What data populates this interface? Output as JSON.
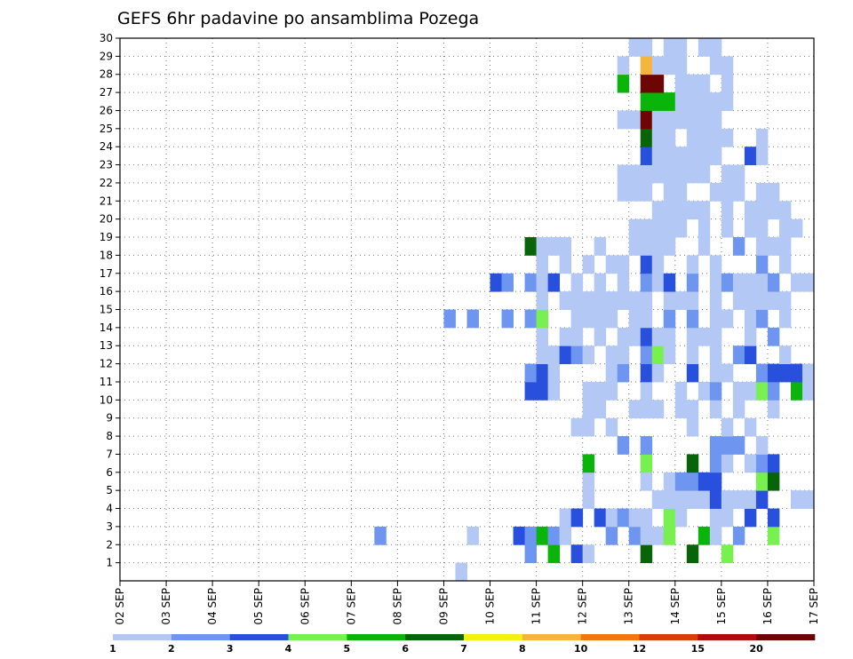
{
  "chart_data": {
    "type": "heatmap",
    "title": "GEFS 6hr padavine po ansamblima Pozega",
    "xlabel": "",
    "ylabel": "",
    "x_tick_labels": [
      "02 SEP",
      "03 SEP",
      "04 SEP",
      "05 SEP",
      "06 SEP",
      "07 SEP",
      "08 SEP",
      "09 SEP",
      "10 SEP",
      "11 SEP",
      "12 SEP",
      "13 SEP",
      "14 SEP",
      "15 SEP",
      "16 SEP",
      "17 SEP"
    ],
    "y_tick_labels": [
      "1",
      "2",
      "3",
      "4",
      "5",
      "6",
      "7",
      "8",
      "9",
      "10",
      "11",
      "12",
      "13",
      "14",
      "15",
      "16",
      "17",
      "18",
      "19",
      "20",
      "21",
      "22",
      "23",
      "24",
      "25",
      "26",
      "27",
      "28",
      "29",
      "30"
    ],
    "x_range_steps": [
      0,
      60
    ],
    "steps_per_day": 4,
    "y_range": [
      0,
      30
    ],
    "grid": true,
    "legend_position": "bottom",
    "legend": {
      "colors": [
        "#b4c8f5",
        "#6e96f0",
        "#2850dc",
        "#78f050",
        "#0ab40a",
        "#086408",
        "#f5f014",
        "#f5b43c",
        "#f0780a",
        "#dc3c0a",
        "#b40a0a",
        "#6e0505"
      ],
      "labels": [
        "1",
        "2",
        "3",
        "4",
        "5",
        "6",
        "7",
        "8",
        "10",
        "12",
        "15",
        "20"
      ]
    },
    "cells": [
      [
        1,
        30,
        1
      ],
      [
        2,
        36,
        2
      ],
      [
        2,
        38,
        5
      ],
      [
        2,
        40,
        3
      ],
      [
        2,
        41,
        1
      ],
      [
        2,
        46,
        6
      ],
      [
        2,
        50,
        6
      ],
      [
        2,
        53,
        4
      ],
      [
        3,
        23,
        2
      ],
      [
        3,
        31,
        1
      ],
      [
        3,
        35,
        3
      ],
      [
        3,
        36,
        2
      ],
      [
        3,
        37,
        5
      ],
      [
        3,
        38,
        2
      ],
      [
        3,
        39,
        1
      ],
      [
        3,
        43,
        2
      ],
      [
        3,
        45,
        2
      ],
      [
        3,
        46,
        1
      ],
      [
        3,
        47,
        1
      ],
      [
        3,
        48,
        4
      ],
      [
        3,
        51,
        5
      ],
      [
        3,
        52,
        1
      ],
      [
        3,
        54,
        2
      ],
      [
        3,
        57,
        4
      ],
      [
        4,
        39,
        1
      ],
      [
        4,
        40,
        3
      ],
      [
        4,
        42,
        3
      ],
      [
        4,
        43,
        1
      ],
      [
        4,
        44,
        2
      ],
      [
        4,
        45,
        1
      ],
      [
        4,
        46,
        1
      ],
      [
        4,
        48,
        4
      ],
      [
        4,
        49,
        1
      ],
      [
        4,
        52,
        1
      ],
      [
        4,
        53,
        1
      ],
      [
        4,
        55,
        3
      ],
      [
        4,
        57,
        3
      ],
      [
        5,
        41,
        1
      ],
      [
        5,
        47,
        1
      ],
      [
        5,
        48,
        1
      ],
      [
        5,
        49,
        1
      ],
      [
        5,
        50,
        1
      ],
      [
        5,
        51,
        1
      ],
      [
        5,
        52,
        3
      ],
      [
        5,
        53,
        1
      ],
      [
        5,
        54,
        1
      ],
      [
        5,
        55,
        1
      ],
      [
        5,
        56,
        3
      ],
      [
        5,
        59,
        1
      ],
      [
        5,
        60,
        1
      ],
      [
        6,
        41,
        1
      ],
      [
        6,
        46,
        1
      ],
      [
        6,
        48,
        1
      ],
      [
        6,
        49,
        2
      ],
      [
        6,
        50,
        2
      ],
      [
        6,
        51,
        3
      ],
      [
        6,
        52,
        3
      ],
      [
        6,
        56,
        4
      ],
      [
        6,
        57,
        6
      ],
      [
        7,
        41,
        5
      ],
      [
        7,
        46,
        4
      ],
      [
        7,
        50,
        6
      ],
      [
        7,
        52,
        2
      ],
      [
        7,
        53,
        1
      ],
      [
        7,
        55,
        1
      ],
      [
        7,
        56,
        2
      ],
      [
        7,
        57,
        3
      ],
      [
        8,
        44,
        2
      ],
      [
        8,
        46,
        2
      ],
      [
        8,
        52,
        2
      ],
      [
        8,
        53,
        2
      ],
      [
        8,
        54,
        2
      ],
      [
        8,
        56,
        1
      ],
      [
        9,
        40,
        1
      ],
      [
        9,
        41,
        1
      ],
      [
        9,
        43,
        1
      ],
      [
        9,
        50,
        1
      ],
      [
        9,
        53,
        1
      ],
      [
        9,
        55,
        1
      ],
      [
        10,
        41,
        1
      ],
      [
        10,
        42,
        1
      ],
      [
        10,
        45,
        1
      ],
      [
        10,
        46,
        1
      ],
      [
        10,
        47,
        1
      ],
      [
        10,
        49,
        1
      ],
      [
        10,
        50,
        1
      ],
      [
        10,
        52,
        1
      ],
      [
        10,
        54,
        1
      ],
      [
        10,
        57,
        1
      ],
      [
        11,
        36,
        3
      ],
      [
        11,
        37,
        3
      ],
      [
        11,
        38,
        1
      ],
      [
        11,
        41,
        1
      ],
      [
        11,
        42,
        1
      ],
      [
        11,
        43,
        1
      ],
      [
        11,
        46,
        1
      ],
      [
        11,
        49,
        1
      ],
      [
        11,
        51,
        1
      ],
      [
        11,
        52,
        2
      ],
      [
        11,
        54,
        1
      ],
      [
        11,
        55,
        1
      ],
      [
        11,
        56,
        4
      ],
      [
        11,
        57,
        2
      ],
      [
        11,
        59,
        5
      ],
      [
        11,
        60,
        1
      ],
      [
        12,
        36,
        2
      ],
      [
        12,
        37,
        3
      ],
      [
        12,
        38,
        1
      ],
      [
        12,
        43,
        1
      ],
      [
        12,
        44,
        2
      ],
      [
        12,
        46,
        3
      ],
      [
        12,
        47,
        1
      ],
      [
        12,
        50,
        3
      ],
      [
        12,
        52,
        1
      ],
      [
        12,
        53,
        1
      ],
      [
        12,
        56,
        2
      ],
      [
        12,
        57,
        3
      ],
      [
        12,
        58,
        3
      ],
      [
        12,
        59,
        3
      ],
      [
        12,
        60,
        1
      ],
      [
        13,
        37,
        1
      ],
      [
        13,
        38,
        1
      ],
      [
        13,
        39,
        3
      ],
      [
        13,
        40,
        2
      ],
      [
        13,
        41,
        1
      ],
      [
        13,
        43,
        1
      ],
      [
        13,
        44,
        1
      ],
      [
        13,
        46,
        2
      ],
      [
        13,
        47,
        4
      ],
      [
        13,
        48,
        1
      ],
      [
        13,
        50,
        1
      ],
      [
        13,
        52,
        1
      ],
      [
        13,
        54,
        2
      ],
      [
        13,
        55,
        3
      ],
      [
        13,
        58,
        1
      ],
      [
        14,
        37,
        1
      ],
      [
        14,
        39,
        1
      ],
      [
        14,
        40,
        1
      ],
      [
        14,
        42,
        1
      ],
      [
        14,
        44,
        1
      ],
      [
        14,
        45,
        1
      ],
      [
        14,
        46,
        3
      ],
      [
        14,
        47,
        1
      ],
      [
        14,
        48,
        1
      ],
      [
        14,
        50,
        1
      ],
      [
        14,
        51,
        1
      ],
      [
        14,
        52,
        1
      ],
      [
        14,
        55,
        1
      ],
      [
        14,
        57,
        2
      ],
      [
        15,
        29,
        2
      ],
      [
        15,
        31,
        2
      ],
      [
        15,
        34,
        2
      ],
      [
        15,
        36,
        2
      ],
      [
        15,
        37,
        4
      ],
      [
        15,
        40,
        1
      ],
      [
        15,
        41,
        1
      ],
      [
        15,
        42,
        1
      ],
      [
        15,
        43,
        1
      ],
      [
        15,
        45,
        1
      ],
      [
        15,
        46,
        1
      ],
      [
        15,
        48,
        2
      ],
      [
        15,
        50,
        2
      ],
      [
        15,
        52,
        1
      ],
      [
        15,
        53,
        1
      ],
      [
        15,
        55,
        1
      ],
      [
        15,
        56,
        2
      ],
      [
        15,
        58,
        1
      ],
      [
        16,
        37,
        1
      ],
      [
        16,
        39,
        1
      ],
      [
        16,
        40,
        1
      ],
      [
        16,
        41,
        1
      ],
      [
        16,
        42,
        1
      ],
      [
        16,
        43,
        1
      ],
      [
        16,
        44,
        1
      ],
      [
        16,
        45,
        1
      ],
      [
        16,
        46,
        1
      ],
      [
        16,
        48,
        1
      ],
      [
        16,
        49,
        1
      ],
      [
        16,
        50,
        1
      ],
      [
        16,
        52,
        1
      ],
      [
        16,
        54,
        1
      ],
      [
        16,
        55,
        1
      ],
      [
        16,
        56,
        1
      ],
      [
        16,
        57,
        1
      ],
      [
        16,
        58,
        1
      ],
      [
        17,
        33,
        3
      ],
      [
        17,
        34,
        2
      ],
      [
        17,
        36,
        2
      ],
      [
        17,
        37,
        1
      ],
      [
        17,
        38,
        3
      ],
      [
        17,
        40,
        1
      ],
      [
        17,
        42,
        1
      ],
      [
        17,
        44,
        1
      ],
      [
        17,
        46,
        2
      ],
      [
        17,
        47,
        1
      ],
      [
        17,
        48,
        3
      ],
      [
        17,
        50,
        2
      ],
      [
        17,
        52,
        1
      ],
      [
        17,
        53,
        2
      ],
      [
        17,
        54,
        1
      ],
      [
        17,
        55,
        1
      ],
      [
        17,
        56,
        1
      ],
      [
        17,
        57,
        2
      ],
      [
        17,
        59,
        1
      ],
      [
        17,
        60,
        1
      ],
      [
        18,
        37,
        1
      ],
      [
        18,
        39,
        1
      ],
      [
        18,
        41,
        1
      ],
      [
        18,
        43,
        1
      ],
      [
        18,
        44,
        1
      ],
      [
        18,
        46,
        3
      ],
      [
        18,
        47,
        1
      ],
      [
        18,
        50,
        1
      ],
      [
        18,
        52,
        1
      ],
      [
        18,
        56,
        2
      ],
      [
        18,
        58,
        1
      ],
      [
        19,
        36,
        6
      ],
      [
        19,
        37,
        1
      ],
      [
        19,
        38,
        1
      ],
      [
        19,
        39,
        1
      ],
      [
        19,
        42,
        1
      ],
      [
        19,
        45,
        1
      ],
      [
        19,
        46,
        1
      ],
      [
        19,
        47,
        1
      ],
      [
        19,
        48,
        1
      ],
      [
        19,
        51,
        1
      ],
      [
        19,
        54,
        2
      ],
      [
        19,
        56,
        1
      ],
      [
        19,
        57,
        1
      ],
      [
        19,
        58,
        1
      ],
      [
        20,
        45,
        1
      ],
      [
        20,
        46,
        1
      ],
      [
        20,
        47,
        1
      ],
      [
        20,
        48,
        1
      ],
      [
        20,
        49,
        1
      ],
      [
        20,
        51,
        1
      ],
      [
        20,
        53,
        1
      ],
      [
        20,
        55,
        1
      ],
      [
        20,
        56,
        1
      ],
      [
        20,
        58,
        1
      ],
      [
        20,
        59,
        1
      ],
      [
        21,
        47,
        1
      ],
      [
        21,
        48,
        1
      ],
      [
        21,
        49,
        1
      ],
      [
        21,
        50,
        1
      ],
      [
        21,
        51,
        1
      ],
      [
        21,
        53,
        1
      ],
      [
        21,
        55,
        1
      ],
      [
        21,
        56,
        1
      ],
      [
        21,
        57,
        1
      ],
      [
        21,
        58,
        1
      ],
      [
        22,
        44,
        1
      ],
      [
        22,
        45,
        1
      ],
      [
        22,
        46,
        1
      ],
      [
        22,
        48,
        1
      ],
      [
        22,
        49,
        1
      ],
      [
        22,
        52,
        1
      ],
      [
        22,
        53,
        1
      ],
      [
        22,
        54,
        1
      ],
      [
        22,
        56,
        1
      ],
      [
        22,
        57,
        1
      ],
      [
        23,
        44,
        1
      ],
      [
        23,
        45,
        1
      ],
      [
        23,
        46,
        1
      ],
      [
        23,
        47,
        1
      ],
      [
        23,
        48,
        1
      ],
      [
        23,
        49,
        1
      ],
      [
        23,
        50,
        1
      ],
      [
        23,
        51,
        1
      ],
      [
        23,
        53,
        1
      ],
      [
        23,
        54,
        1
      ],
      [
        24,
        46,
        3
      ],
      [
        24,
        47,
        1
      ],
      [
        24,
        48,
        1
      ],
      [
        24,
        49,
        1
      ],
      [
        24,
        50,
        1
      ],
      [
        24,
        51,
        1
      ],
      [
        24,
        52,
        1
      ],
      [
        24,
        55,
        3
      ],
      [
        24,
        56,
        1
      ],
      [
        25,
        46,
        6
      ],
      [
        25,
        47,
        1
      ],
      [
        25,
        48,
        1
      ],
      [
        25,
        50,
        1
      ],
      [
        25,
        51,
        1
      ],
      [
        25,
        52,
        1
      ],
      [
        25,
        53,
        1
      ],
      [
        25,
        56,
        1
      ],
      [
        26,
        44,
        1
      ],
      [
        26,
        45,
        1
      ],
      [
        26,
        46,
        12
      ],
      [
        26,
        47,
        1
      ],
      [
        26,
        48,
        1
      ],
      [
        26,
        49,
        1
      ],
      [
        26,
        50,
        1
      ],
      [
        26,
        51,
        1
      ],
      [
        26,
        52,
        1
      ],
      [
        27,
        46,
        5
      ],
      [
        27,
        47,
        5
      ],
      [
        27,
        48,
        5
      ],
      [
        27,
        49,
        1
      ],
      [
        27,
        50,
        1
      ],
      [
        27,
        51,
        1
      ],
      [
        27,
        52,
        1
      ],
      [
        27,
        53,
        1
      ],
      [
        28,
        44,
        5
      ],
      [
        28,
        46,
        12
      ],
      [
        28,
        47,
        12
      ],
      [
        28,
        49,
        1
      ],
      [
        28,
        50,
        1
      ],
      [
        28,
        51,
        1
      ],
      [
        28,
        53,
        1
      ],
      [
        29,
        44,
        1
      ],
      [
        29,
        46,
        8
      ],
      [
        29,
        47,
        1
      ],
      [
        29,
        48,
        1
      ],
      [
        29,
        49,
        1
      ],
      [
        29,
        52,
        1
      ],
      [
        29,
        53,
        1
      ],
      [
        30,
        45,
        1
      ],
      [
        30,
        46,
        1
      ],
      [
        30,
        48,
        1
      ],
      [
        30,
        49,
        1
      ],
      [
        30,
        51,
        1
      ],
      [
        30,
        52,
        1
      ]
    ]
  }
}
